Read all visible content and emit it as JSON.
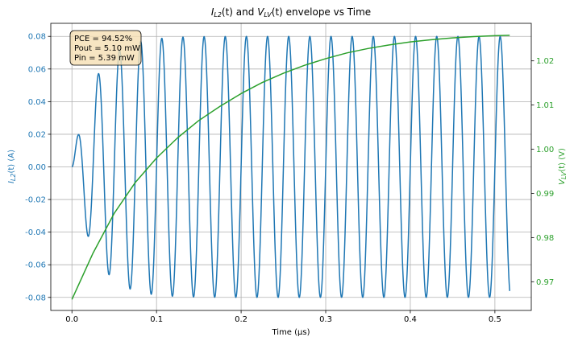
{
  "chart_data": {
    "type": "line",
    "title": "I_L2(t) and V_LV(t) envelope vs Time",
    "title_parts": {
      "i_sym": "I",
      "i_sub": "L2",
      "mid": "(t) and ",
      "v_sym": "V",
      "v_sub": "LV",
      "tail": "(t) envelope vs Time"
    },
    "xlabel": "Time (µs)",
    "ylabel_left": "I_L2(t) (A)",
    "ylabel_left_parts": {
      "sym": "I",
      "sub": "L2",
      "tail": "(t) (A)"
    },
    "ylabel_right": "V_LV(t) (V)",
    "ylabel_right_parts": {
      "sym": "V",
      "sub": "LV",
      "tail": "(t) (V)"
    },
    "xlim": [
      -0.025,
      0.543
    ],
    "ylim_left": [
      -0.088,
      0.088
    ],
    "ylim_right": [
      0.9635,
      1.0285
    ],
    "x_ticks": [
      "0.0",
      "0.1",
      "0.2",
      "0.3",
      "0.4",
      "0.5"
    ],
    "y_left_ticks": [
      "-0.08",
      "-0.06",
      "-0.04",
      "-0.02",
      "0.00",
      "0.02",
      "0.04",
      "0.06",
      "0.08"
    ],
    "y_right_ticks": [
      "0.97",
      "0.98",
      "0.99",
      "1.00",
      "1.01",
      "1.02"
    ],
    "grid": true,
    "series": [
      {
        "name": "I_L2(t)",
        "axis": "left",
        "color": "#1f77b4",
        "waveform": {
          "frequency_mhz": 40,
          "amplitude_a": 0.08,
          "tau_us": 0.025,
          "t_start_us": 0,
          "t_end_us": 0.5175,
          "samples": 1600
        }
      },
      {
        "name": "V_LV(t) envelope",
        "axis": "right",
        "color": "#2ca02c",
        "x": [
          0.0,
          0.025,
          0.05,
          0.075,
          0.1,
          0.125,
          0.15,
          0.175,
          0.2,
          0.225,
          0.25,
          0.275,
          0.3,
          0.325,
          0.35,
          0.375,
          0.4,
          0.425,
          0.45,
          0.475,
          0.5,
          0.5175
        ],
        "y": [
          0.966,
          0.9765,
          0.9855,
          0.9925,
          0.998,
          1.0026,
          1.0065,
          1.0097,
          1.0126,
          1.0151,
          1.0172,
          1.019,
          1.0205,
          1.0218,
          1.0228,
          1.0236,
          1.0243,
          1.0248,
          1.0252,
          1.0255,
          1.0257,
          1.0258
        ]
      }
    ],
    "annotation": {
      "lines": [
        "PCE = 94.52%",
        "Pout = 5.10 mW",
        "Pin = 5.39 mW"
      ],
      "placement": "top-left"
    }
  }
}
